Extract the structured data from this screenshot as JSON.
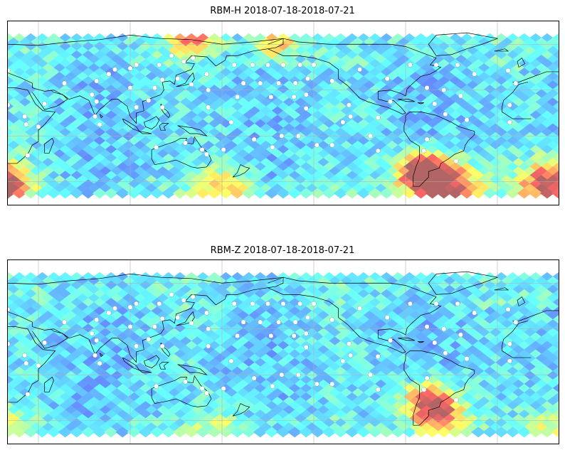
{
  "figure": {
    "panels": [
      {
        "title": "RBM-H 2018-07-18-2018-07-21",
        "field": "rbm-h",
        "hotspots": [
          {
            "lon": 305,
            "lat": -55,
            "intensity": 1.0,
            "spread": 22
          },
          {
            "lon": 290,
            "lat": -40,
            "intensity": 0.95,
            "spread": 16
          },
          {
            "lon": 15,
            "lat": -52,
            "intensity": 0.95,
            "spread": 20
          },
          {
            "lon": 140,
            "lat": 76,
            "intensity": 0.75,
            "spread": 16
          },
          {
            "lon": 160,
            "lat": -55,
            "intensity": 0.55,
            "spread": 18
          },
          {
            "lon": 195,
            "lat": 70,
            "intensity": 0.55,
            "spread": 14
          }
        ]
      },
      {
        "title": "RBM-Z 2018-07-18-2018-07-21",
        "field": "rbm-z",
        "hotspots": [
          {
            "lon": 295,
            "lat": -35,
            "intensity": 0.8,
            "spread": 18
          },
          {
            "lon": 305,
            "lat": -48,
            "intensity": 0.55,
            "spread": 16
          },
          {
            "lon": 15,
            "lat": -55,
            "intensity": 0.35,
            "spread": 16
          },
          {
            "lon": 160,
            "lat": -60,
            "intensity": 0.3,
            "spread": 20
          }
        ]
      }
    ],
    "map": {
      "projection": "PlateCarree",
      "central_longitude": 180,
      "extent_lon": [
        20,
        380
      ],
      "extent_lat": [
        -70,
        90
      ],
      "data_lat": [
        -60,
        75
      ],
      "gridlines_lon": [
        40,
        100,
        160,
        220,
        280,
        340
      ],
      "gridlines_lat": [
        -50,
        -10,
        30,
        70
      ]
    },
    "colormap": {
      "name": "jet",
      "alpha": 0.6,
      "stops": [
        "#00007f",
        "#0000ff",
        "#007fff",
        "#00ffff",
        "#7fff7f",
        "#ffff00",
        "#ff7f00",
        "#ff0000",
        "#7f0000"
      ],
      "base_level": 0.32
    },
    "stations": [
      [
        100,
        49
      ],
      [
        121,
        39
      ],
      [
        131,
        40
      ],
      [
        135,
        55
      ],
      [
        104,
        52
      ],
      [
        119,
        52
      ],
      [
        75,
        26
      ],
      [
        100,
        32
      ],
      [
        116,
        32
      ],
      [
        151,
        30
      ],
      [
        127,
        60
      ],
      [
        104,
        15
      ],
      [
        121,
        15
      ],
      [
        151,
        15
      ],
      [
        141,
        58
      ],
      [
        140,
        35
      ],
      [
        150,
        44
      ],
      [
        117,
        -20
      ],
      [
        136,
        -16
      ],
      [
        147,
        -22
      ],
      [
        112,
        21
      ],
      [
        78,
        38
      ],
      [
        78,
        20
      ],
      [
        86,
        44
      ],
      [
        90,
        48
      ],
      [
        57,
        36
      ],
      [
        77,
        7
      ],
      [
        80,
        0
      ],
      [
        44,
        18
      ],
      [
        33,
        -27
      ],
      [
        40,
        -2
      ],
      [
        20,
        47
      ],
      [
        18,
        30
      ],
      [
        20,
        17
      ],
      [
        31,
        7
      ],
      [
        32,
        0
      ],
      [
        168,
        52
      ],
      [
        180,
        52
      ],
      [
        190,
        52
      ],
      [
        200,
        52
      ],
      [
        211,
        52
      ],
      [
        220,
        52
      ],
      [
        174,
        36
      ],
      [
        185,
        36
      ],
      [
        197,
        36
      ],
      [
        208,
        36
      ],
      [
        216,
        40
      ],
      [
        232,
        38
      ],
      [
        170,
        24
      ],
      [
        192,
        24
      ],
      [
        207,
        24
      ],
      [
        215,
        26
      ],
      [
        243,
        17
      ],
      [
        262,
        6
      ],
      [
        250,
        48
      ],
      [
        268,
        40
      ],
      [
        283,
        52
      ],
      [
        300,
        52
      ],
      [
        314,
        52
      ],
      [
        347,
        47
      ],
      [
        294,
        32
      ],
      [
        305,
        30
      ],
      [
        299,
        18
      ],
      [
        306,
        9
      ],
      [
        316,
        25
      ],
      [
        348,
        17
      ],
      [
        320,
        4
      ],
      [
        348,
        2
      ],
      [
        239,
        2
      ],
      [
        210,
        -10
      ],
      [
        222,
        -18
      ],
      [
        232,
        -18
      ],
      [
        262,
        -23
      ],
      [
        257,
        -10
      ],
      [
        292,
        -23
      ],
      [
        313,
        -32
      ],
      [
        294,
        -13
      ],
      [
        181,
        -13
      ],
      [
        199,
        -10
      ],
      [
        166,
        2
      ],
      [
        193,
        -20
      ],
      [
        150,
        -26
      ],
      [
        161,
        -22
      ],
      [
        352,
        36
      ],
      [
        325,
        44
      ],
      [
        215,
        14
      ],
      [
        244,
        7
      ],
      [
        270,
        20
      ]
    ]
  }
}
